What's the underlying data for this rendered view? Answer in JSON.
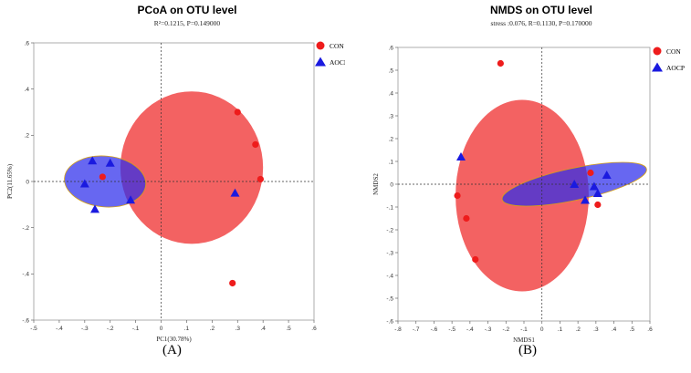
{
  "chart_data": [
    {
      "type": "scatter",
      "title": "PCoA on OTU level",
      "subtitle": "R²=0.1215, P=0.149000",
      "xlabel": "PC1(30.78%)",
      "ylabel": "PC2(11.65%)",
      "xlim": [
        -0.5,
        0.6
      ],
      "ylim": [
        -0.6,
        0.6
      ],
      "xticks": [
        -0.5,
        -0.4,
        -0.3,
        -0.2,
        -0.1,
        0,
        0.1,
        0.2,
        0.3,
        0.4,
        0.5,
        0.6
      ],
      "yticks": [
        -0.6,
        -0.4,
        -0.2,
        0,
        0.2,
        0.4,
        0.6
      ],
      "legend_position": "top-right",
      "series": [
        {
          "name": "CON",
          "color": "#ee1c1c",
          "marker": "circle",
          "points": [
            [
              0.3,
              0.3
            ],
            [
              0.37,
              0.16
            ],
            [
              0.39,
              0.01
            ],
            [
              0.28,
              -0.44
            ],
            [
              -0.23,
              0.02
            ]
          ],
          "ellipse": {
            "cx": 0.12,
            "cy": 0.06,
            "rx": 0.28,
            "ry": 0.33,
            "angle": 0
          }
        },
        {
          "name": "AOCP",
          "color": "#1a1adf",
          "marker": "triangle",
          "points": [
            [
              -0.27,
              0.09
            ],
            [
              -0.2,
              0.08
            ],
            [
              -0.3,
              -0.01
            ],
            [
              -0.26,
              -0.12
            ],
            [
              -0.12,
              -0.08
            ],
            [
              0.29,
              -0.05
            ]
          ],
          "ellipse": {
            "cx": -0.22,
            "cy": 0.0,
            "rx": 0.16,
            "ry": 0.11,
            "angle": -5
          }
        }
      ]
    },
    {
      "type": "scatter",
      "title": "NMDS on OTU level",
      "subtitle": "stress :0.076, R=0.1130, P=0.170000",
      "xlabel": "NMDS1",
      "ylabel": "NMDS2",
      "xlim": [
        -0.8,
        0.6
      ],
      "ylim": [
        -0.6,
        0.6
      ],
      "xticks": [
        -0.8,
        -0.7,
        -0.6,
        -0.5,
        -0.4,
        -0.3,
        -0.2,
        -0.1,
        0,
        0.1,
        0.2,
        0.3,
        0.4,
        0.5,
        0.6
      ],
      "yticks": [
        -0.6,
        -0.5,
        -0.4,
        -0.3,
        -0.2,
        -0.1,
        0,
        0.1,
        0.2,
        0.3,
        0.4,
        0.5,
        0.6
      ],
      "legend_position": "top-right",
      "series": [
        {
          "name": "CON",
          "color": "#ee1c1c",
          "marker": "circle",
          "points": [
            [
              -0.23,
              0.53
            ],
            [
              -0.47,
              -0.05
            ],
            [
              -0.42,
              -0.15
            ],
            [
              -0.37,
              -0.33
            ],
            [
              0.27,
              0.05
            ],
            [
              0.31,
              -0.09
            ]
          ],
          "ellipse": {
            "cx": -0.11,
            "cy": -0.05,
            "rx": 0.37,
            "ry": 0.42,
            "angle": 0
          }
        },
        {
          "name": "AOCP",
          "color": "#1a1adf",
          "marker": "triangle",
          "points": [
            [
              -0.45,
              0.12
            ],
            [
              0.36,
              0.04
            ],
            [
              0.18,
              0.0
            ],
            [
              0.29,
              -0.01
            ],
            [
              0.31,
              -0.04
            ],
            [
              0.24,
              -0.07
            ]
          ],
          "ellipse": {
            "cx": 0.18,
            "cy": 0.0,
            "rx": 0.41,
            "ry": 0.07,
            "angle": 12
          }
        }
      ]
    }
  ],
  "panel_labels": [
    "(A)",
    "(B)"
  ],
  "legend": [
    "CON",
    "AOCP"
  ]
}
